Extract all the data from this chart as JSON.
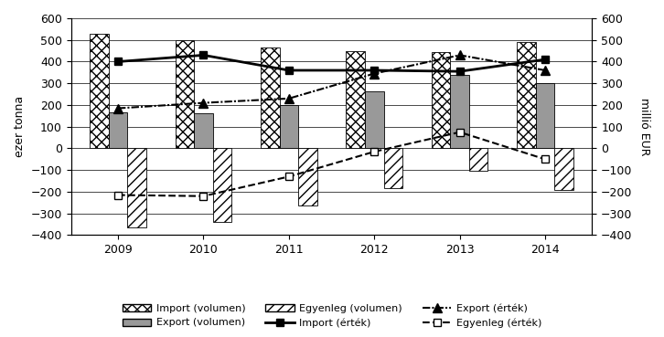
{
  "years": [
    2009,
    2010,
    2011,
    2012,
    2013,
    2014
  ],
  "import_volumen": [
    530,
    500,
    465,
    450,
    445,
    490
  ],
  "export_volumen": [
    165,
    160,
    200,
    265,
    340,
    300
  ],
  "egyenleg_volumen": [
    -365,
    -340,
    -265,
    -185,
    -105,
    -190
  ],
  "import_ertek": [
    400,
    430,
    360,
    360,
    355,
    410
  ],
  "export_ertek": [
    185,
    210,
    230,
    345,
    430,
    360
  ],
  "egyenleg_ertek": [
    -215,
    -220,
    -130,
    -15,
    75,
    -50
  ],
  "ylim": [
    -400,
    600
  ],
  "yticks": [
    -400,
    -300,
    -200,
    -100,
    0,
    100,
    200,
    300,
    400,
    500,
    600
  ],
  "bar_width": 0.22,
  "ylabel_left": "ezer tonna",
  "ylabel_right": "millió EUR",
  "legend_labels": [
    "Import (volumen)",
    "Export (volumen)",
    "Egyenleg (volumen)",
    "Import (érték)",
    "Export (érték)",
    "Egyenleg (érték)"
  ]
}
